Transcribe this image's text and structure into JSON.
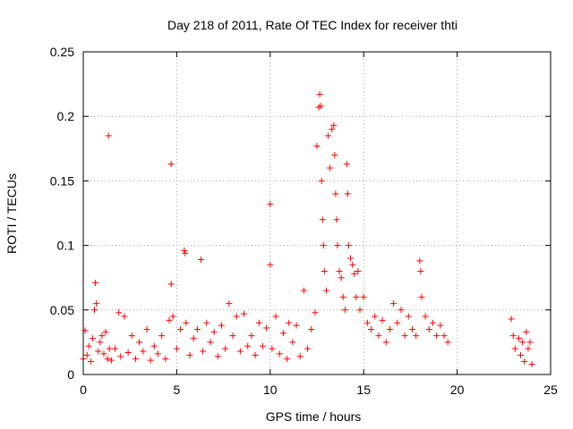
{
  "chart_data": {
    "type": "scatter",
    "title": "Day 218 of 2011, Rate Of TEC Index for receiver thti",
    "xlabel": "GPS time / hours",
    "ylabel": "ROTI / TECUs",
    "xlim": [
      0,
      25
    ],
    "ylim": [
      0,
      0.25
    ],
    "xticks": [
      0,
      5,
      10,
      15,
      20,
      25
    ],
    "yticks": [
      0,
      0.05,
      0.1,
      0.15,
      0.2,
      0.25
    ],
    "xtick_labels": [
      "0",
      "5",
      "10",
      "15",
      "20",
      "25"
    ],
    "ytick_labels": [
      "0",
      "0.05",
      "0.1",
      "0.15",
      "0.2",
      "0.25"
    ],
    "grid": true,
    "marker": "+",
    "color": "#ff0000",
    "series": [
      {
        "name": "",
        "points": [
          [
            0.0,
            0.012
          ],
          [
            0.1,
            0.034
          ],
          [
            0.2,
            0.015
          ],
          [
            0.3,
            0.022
          ],
          [
            0.4,
            0.01
          ],
          [
            0.5,
            0.028
          ],
          [
            0.6,
            0.05
          ],
          [
            0.65,
            0.071
          ],
          [
            0.7,
            0.055
          ],
          [
            0.8,
            0.018
          ],
          [
            0.9,
            0.025
          ],
          [
            1.0,
            0.03
          ],
          [
            1.1,
            0.016
          ],
          [
            1.2,
            0.033
          ],
          [
            1.3,
            0.012
          ],
          [
            1.35,
            0.185
          ],
          [
            1.4,
            0.02
          ],
          [
            1.5,
            0.011
          ],
          [
            1.7,
            0.02
          ],
          [
            1.9,
            0.048
          ],
          [
            2.0,
            0.014
          ],
          [
            2.2,
            0.045
          ],
          [
            2.4,
            0.017
          ],
          [
            2.6,
            0.03
          ],
          [
            2.8,
            0.012
          ],
          [
            3.0,
            0.025
          ],
          [
            3.2,
            0.018
          ],
          [
            3.4,
            0.035
          ],
          [
            3.6,
            0.011
          ],
          [
            3.8,
            0.022
          ],
          [
            4.0,
            0.016
          ],
          [
            4.2,
            0.03
          ],
          [
            4.4,
            0.012
          ],
          [
            4.6,
            0.042
          ],
          [
            4.7,
            0.163
          ],
          [
            4.7,
            0.07
          ],
          [
            4.8,
            0.045
          ],
          [
            5.0,
            0.02
          ],
          [
            5.2,
            0.035
          ],
          [
            5.4,
            0.096
          ],
          [
            5.45,
            0.094
          ],
          [
            5.5,
            0.04
          ],
          [
            5.7,
            0.015
          ],
          [
            5.9,
            0.028
          ],
          [
            6.1,
            0.035
          ],
          [
            6.3,
            0.089
          ],
          [
            6.4,
            0.018
          ],
          [
            6.6,
            0.04
          ],
          [
            6.8,
            0.025
          ],
          [
            7.0,
            0.033
          ],
          [
            7.2,
            0.014
          ],
          [
            7.4,
            0.038
          ],
          [
            7.6,
            0.02
          ],
          [
            7.8,
            0.055
          ],
          [
            8.0,
            0.03
          ],
          [
            8.2,
            0.045
          ],
          [
            8.4,
            0.018
          ],
          [
            8.6,
            0.047
          ],
          [
            8.8,
            0.022
          ],
          [
            9.0,
            0.03
          ],
          [
            9.2,
            0.015
          ],
          [
            9.4,
            0.04
          ],
          [
            9.6,
            0.022
          ],
          [
            9.8,
            0.036
          ],
          [
            10.0,
            0.132
          ],
          [
            10.0,
            0.085
          ],
          [
            10.1,
            0.02
          ],
          [
            10.3,
            0.045
          ],
          [
            10.5,
            0.016
          ],
          [
            10.7,
            0.032
          ],
          [
            10.9,
            0.012
          ],
          [
            11.0,
            0.04
          ],
          [
            11.2,
            0.025
          ],
          [
            11.4,
            0.038
          ],
          [
            11.6,
            0.014
          ],
          [
            11.8,
            0.065
          ],
          [
            12.0,
            0.02
          ],
          [
            12.2,
            0.035
          ],
          [
            12.4,
            0.048
          ],
          [
            12.5,
            0.177
          ],
          [
            12.6,
            0.207
          ],
          [
            12.65,
            0.217
          ],
          [
            12.7,
            0.208
          ],
          [
            12.75,
            0.15
          ],
          [
            12.8,
            0.12
          ],
          [
            12.85,
            0.1
          ],
          [
            12.9,
            0.08
          ],
          [
            13.0,
            0.065
          ],
          [
            13.1,
            0.185
          ],
          [
            13.2,
            0.16
          ],
          [
            13.3,
            0.19
          ],
          [
            13.4,
            0.193
          ],
          [
            13.45,
            0.17
          ],
          [
            13.5,
            0.14
          ],
          [
            13.55,
            0.12
          ],
          [
            13.6,
            0.1
          ],
          [
            13.7,
            0.08
          ],
          [
            13.8,
            0.075
          ],
          [
            13.9,
            0.06
          ],
          [
            14.0,
            0.05
          ],
          [
            14.1,
            0.163
          ],
          [
            14.15,
            0.14
          ],
          [
            14.2,
            0.1
          ],
          [
            14.3,
            0.09
          ],
          [
            14.4,
            0.085
          ],
          [
            14.5,
            0.078
          ],
          [
            14.6,
            0.06
          ],
          [
            14.7,
            0.08
          ],
          [
            14.8,
            0.05
          ],
          [
            15.0,
            0.06
          ],
          [
            15.2,
            0.04
          ],
          [
            15.4,
            0.035
          ],
          [
            15.6,
            0.045
          ],
          [
            15.8,
            0.03
          ],
          [
            16.0,
            0.042
          ],
          [
            16.2,
            0.025
          ],
          [
            16.4,
            0.035
          ],
          [
            16.6,
            0.055
          ],
          [
            16.8,
            0.04
          ],
          [
            17.0,
            0.05
          ],
          [
            17.2,
            0.03
          ],
          [
            17.4,
            0.045
          ],
          [
            17.6,
            0.035
          ],
          [
            17.8,
            0.03
          ],
          [
            18.0,
            0.088
          ],
          [
            18.05,
            0.08
          ],
          [
            18.1,
            0.06
          ],
          [
            18.3,
            0.045
          ],
          [
            18.5,
            0.035
          ],
          [
            18.7,
            0.04
          ],
          [
            18.9,
            0.03
          ],
          [
            19.1,
            0.038
          ],
          [
            19.3,
            0.03
          ],
          [
            19.5,
            0.025
          ],
          [
            22.9,
            0.043
          ],
          [
            23.0,
            0.03
          ],
          [
            23.1,
            0.02
          ],
          [
            23.3,
            0.028
          ],
          [
            23.4,
            0.015
          ],
          [
            23.5,
            0.025
          ],
          [
            23.6,
            0.01
          ],
          [
            23.7,
            0.033
          ],
          [
            23.8,
            0.02
          ],
          [
            23.9,
            0.025
          ],
          [
            24.0,
            0.008
          ]
        ]
      }
    ]
  }
}
